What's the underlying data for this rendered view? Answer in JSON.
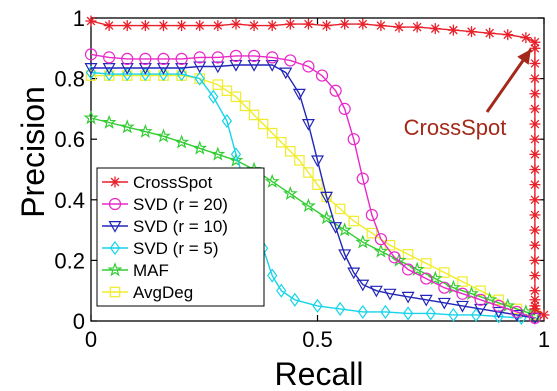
{
  "chart_data": {
    "type": "line",
    "xlabel": "Recall",
    "ylabel": "Precision",
    "xlim": [
      0,
      1
    ],
    "ylim": [
      0,
      1
    ],
    "x_ticks": [
      "0",
      "0.5",
      "1"
    ],
    "y_ticks": [
      "0",
      "0.2",
      "0.4",
      "0.6",
      "0.8",
      "1"
    ],
    "legend_position": "bottom-left",
    "annotation": {
      "text": "CrossSpot",
      "color": "#a32a1a",
      "points_to": {
        "x": 0.98,
        "y": 0.93
      }
    },
    "series": [
      {
        "name": "CrossSpot",
        "color": "#e8202a",
        "marker": "asterisk",
        "x": [
          0,
          0.04,
          0.08,
          0.12,
          0.16,
          0.2,
          0.24,
          0.28,
          0.32,
          0.36,
          0.4,
          0.44,
          0.48,
          0.52,
          0.56,
          0.6,
          0.64,
          0.68,
          0.72,
          0.76,
          0.8,
          0.84,
          0.88,
          0.92,
          0.96,
          0.98,
          0.98,
          0.98,
          0.98,
          0.98,
          0.98,
          0.98,
          0.98,
          0.98,
          0.98,
          0.98,
          0.98,
          0.98,
          0.98,
          0.98,
          0.98,
          0.98,
          0.98,
          0.98,
          0.98,
          0.98,
          1.0
        ],
        "y": [
          0.99,
          0.975,
          0.975,
          0.975,
          0.975,
          0.975,
          0.975,
          0.975,
          0.98,
          0.975,
          0.975,
          0.98,
          0.98,
          0.975,
          0.98,
          0.98,
          0.975,
          0.97,
          0.97,
          0.965,
          0.96,
          0.955,
          0.95,
          0.945,
          0.935,
          0.92,
          0.9,
          0.85,
          0.8,
          0.75,
          0.7,
          0.65,
          0.6,
          0.55,
          0.5,
          0.45,
          0.4,
          0.35,
          0.3,
          0.25,
          0.2,
          0.15,
          0.1,
          0.07,
          0.05,
          0.04,
          0.02
        ]
      },
      {
        "name": "SVD (r = 20)",
        "color": "#e829c8",
        "marker": "circle",
        "x": [
          0,
          0.04,
          0.08,
          0.12,
          0.16,
          0.2,
          0.24,
          0.28,
          0.32,
          0.36,
          0.4,
          0.44,
          0.48,
          0.51,
          0.54,
          0.56,
          0.58,
          0.6,
          0.62,
          0.64,
          0.67,
          0.7,
          0.74,
          0.78,
          0.82,
          0.86,
          0.9,
          0.94,
          0.98
        ],
        "y": [
          0.88,
          0.87,
          0.865,
          0.865,
          0.865,
          0.865,
          0.87,
          0.87,
          0.875,
          0.875,
          0.87,
          0.86,
          0.84,
          0.81,
          0.76,
          0.7,
          0.6,
          0.47,
          0.35,
          0.27,
          0.21,
          0.17,
          0.14,
          0.11,
          0.09,
          0.07,
          0.05,
          0.03,
          0.01
        ]
      },
      {
        "name": "SVD (r = 10)",
        "color": "#2226b8",
        "marker": "triangle-down",
        "x": [
          0,
          0.04,
          0.08,
          0.12,
          0.16,
          0.2,
          0.24,
          0.28,
          0.32,
          0.36,
          0.4,
          0.43,
          0.46,
          0.48,
          0.5,
          0.52,
          0.54,
          0.56,
          0.58,
          0.6,
          0.63,
          0.66,
          0.7,
          0.74,
          0.78,
          0.82,
          0.86,
          0.9,
          0.94,
          0.98
        ],
        "y": [
          0.835,
          0.835,
          0.835,
          0.835,
          0.835,
          0.835,
          0.84,
          0.84,
          0.845,
          0.845,
          0.845,
          0.82,
          0.75,
          0.65,
          0.53,
          0.41,
          0.31,
          0.22,
          0.16,
          0.12,
          0.1,
          0.09,
          0.08,
          0.07,
          0.06,
          0.05,
          0.04,
          0.03,
          0.02,
          0.01
        ]
      },
      {
        "name": "SVD (r = 5)",
        "color": "#17d4e8",
        "marker": "diamond",
        "x": [
          0,
          0.04,
          0.08,
          0.12,
          0.16,
          0.2,
          0.24,
          0.27,
          0.3,
          0.32,
          0.34,
          0.36,
          0.38,
          0.4,
          0.42,
          0.45,
          0.5,
          0.55,
          0.6,
          0.65,
          0.7,
          0.75,
          0.8,
          0.85,
          0.9,
          0.95
        ],
        "y": [
          0.82,
          0.815,
          0.815,
          0.815,
          0.815,
          0.815,
          0.8,
          0.74,
          0.66,
          0.55,
          0.45,
          0.34,
          0.24,
          0.15,
          0.1,
          0.07,
          0.05,
          0.04,
          0.03,
          0.03,
          0.025,
          0.025,
          0.02,
          0.02,
          0.015,
          0.01
        ]
      },
      {
        "name": "MAF",
        "color": "#33cc33",
        "marker": "star",
        "x": [
          0,
          0.04,
          0.08,
          0.12,
          0.16,
          0.2,
          0.24,
          0.28,
          0.32,
          0.36,
          0.4,
          0.44,
          0.48,
          0.52,
          0.56,
          0.6,
          0.64,
          0.68,
          0.72,
          0.76,
          0.8,
          0.84,
          0.88,
          0.92,
          0.96,
          0.98
        ],
        "y": [
          0.67,
          0.655,
          0.64,
          0.625,
          0.61,
          0.59,
          0.57,
          0.55,
          0.53,
          0.5,
          0.46,
          0.42,
          0.38,
          0.34,
          0.3,
          0.26,
          0.23,
          0.2,
          0.17,
          0.14,
          0.11,
          0.09,
          0.07,
          0.05,
          0.03,
          0.02
        ]
      },
      {
        "name": "AvgDeg",
        "color": "#f0ec2a",
        "marker": "square",
        "x": [
          0,
          0.04,
          0.08,
          0.12,
          0.16,
          0.2,
          0.24,
          0.28,
          0.3,
          0.32,
          0.34,
          0.36,
          0.38,
          0.4,
          0.42,
          0.44,
          0.46,
          0.48,
          0.5,
          0.52,
          0.55,
          0.58,
          0.62,
          0.66,
          0.7,
          0.74,
          0.78,
          0.82,
          0.86,
          0.9,
          0.94,
          0.98
        ],
        "y": [
          0.81,
          0.81,
          0.81,
          0.81,
          0.81,
          0.81,
          0.8,
          0.78,
          0.76,
          0.74,
          0.71,
          0.68,
          0.65,
          0.62,
          0.59,
          0.56,
          0.53,
          0.49,
          0.45,
          0.41,
          0.37,
          0.33,
          0.29,
          0.25,
          0.22,
          0.19,
          0.16,
          0.13,
          0.1,
          0.07,
          0.04,
          0.02
        ]
      }
    ]
  }
}
